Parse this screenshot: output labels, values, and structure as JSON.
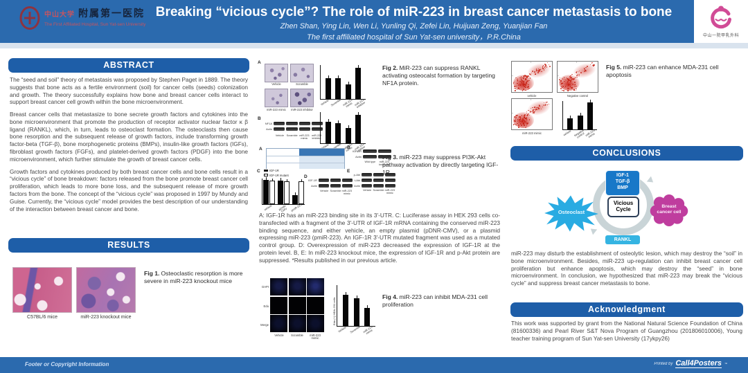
{
  "colors": {
    "header_blue": "#2b6aae",
    "section_blue": "#1e5ea8",
    "cyan": "#29abe2",
    "magenta": "#bf3d9e",
    "box_blue": "#1878c8",
    "rankl_blue": "#35b4e2"
  },
  "header": {
    "title": "Breaking “vicious cycle”? The role of miR-223 in breast cancer metastasis to bone",
    "authors": "Zhen Shan, Ying Lin, Wen Li, Yunling Qi, Zefei Lin, Huijuan Zeng, Yuanjian Fan",
    "affiliation": "The first affiliated hospital of Sun Yat-sen university，P.R.China",
    "left_logo": {
      "univ_cn": "中山大学",
      "hospital_cn": "附属第一医院",
      "hospital_en": "The First Affiliated Hospital, Sun Yat-sen University"
    },
    "right_logo": {
      "caption": "中山一院甲乳外科"
    }
  },
  "sections": {
    "abstract": "ABSTRACT",
    "results": "RESULTS",
    "conclusions": "CONCLUSIONS",
    "acknowledgment": "Acknowledgment"
  },
  "abstract_paragraphs": [
    "The “seed and soil” theory of metastasis was proposed by Stephen Paget in 1889. The theory suggests that bone acts as a fertile environment (soil) for cancer cells (seeds) colonization and growth. The theory successfully explains how bone and breast cancer cells interact to support breast cancer cell growth within the bone microenvironment.",
    "Breast cancer cells that metastasize to bone secrete growth factors and cytokines into the bone microenvironment that promote the production of receptor activator nuclear factor κ β ligand (RANKL), which, in turn, leads to osteoclast formation. The osteoclasts then cause bone resorption and the subsequent release of growth factors, include transforming growth factor-beta (TGF-β), bone morphogenetic proteins (BMPs), insulin-like growth factors (IGFs), fibroblast growth factors (FGFs), and platelet-derived growth factors (PDGF) into the bone microenvironment, which further stimulate the growth of breast cancer cells.",
    "Growth factors and cytokines produced by both breast cancer cells and bone cells result in a “vicious cycle” of bone breakdown: factors released from the bone promote breast cancer cell proliferation, which leads to more bone loss, and the subsequent release of more growth factors from the bone. The concept of the “vicious cycle” was proposed in 1997 by Mundy and Guise. Currently, the “vicious cycle” model provides the best description of our understanding of the interaction between breast cancer and bone."
  ],
  "figures": {
    "fig1": {
      "label": "Fig 1.",
      "caption": "Osteoclastic resorption is more severe in miR-223 knockout mice",
      "image_labels": [
        "C57BL/6 mice",
        "miR-223 knockout mice"
      ]
    },
    "fig2": {
      "label": "Fig 2.",
      "caption": "MiR-223 can suppress RANKL activating osteocalst formation by targeting NF1A protein.",
      "panel_letters": [
        "A",
        "B"
      ],
      "image_labels": [
        "Vehicle",
        "Scramble",
        "miR-223 mimic",
        "miR-223 inhibitor"
      ],
      "blot_rows": [
        "NF1A",
        "Actin"
      ],
      "lanes": [
        "Vehicle",
        "Scramble",
        "miR-223 mimic",
        "miR-223 inhibitor"
      ],
      "chart1": {
        "type": "bar",
        "values": [
          62,
          62,
          42,
          92
        ],
        "x": [
          "Vehicle",
          "Scramble",
          "miR-223 mimic",
          "miR-223 inhibitor"
        ]
      },
      "chart2": {
        "type": "bar",
        "values": [
          68,
          64,
          50,
          92
        ],
        "x": [
          "Vehicle",
          "Scramble",
          "miR-223 mimic",
          "miR-223 inhibitor"
        ]
      }
    },
    "fig3": {
      "label": "Fig 3.",
      "caption": "miR-223 may suppress PI3K-Akt pathway activation by directly targeting IGF-1R",
      "panel_letters": [
        "A",
        "B",
        "C",
        "D",
        "E"
      ],
      "legend": [
        "IGF-1R",
        "IGF-1R mutant"
      ],
      "chartC": {
        "type": "bar",
        "groups": [
          "vehicle",
          "pDNR-CMV",
          "pmiR-223"
        ],
        "values": [
          {
            "v": 95
          },
          {
            "v": 92,
            "light": 1
          },
          {
            "sp": 1
          },
          {
            "v": 93
          },
          {
            "v": 90,
            "light": 1
          },
          {
            "sp": 1
          },
          {
            "v": 35
          },
          {
            "v": 88,
            "light": 1
          }
        ]
      },
      "blotB": {
        "rows": [
          "IGF-1R",
          "Actin"
        ],
        "lanes": [
          "Wild type",
          "miR-223 knockout"
        ]
      },
      "blotD": {
        "rows": [
          "IGF-1R",
          "Actin"
        ],
        "lanes": [
          "Vehicle",
          "Scramble",
          "miR-223 mimic"
        ]
      },
      "blotE": {
        "rows": [
          "p-Akt",
          "t-Akt",
          "Actin"
        ],
        "lanes": [
          "Vehicle",
          "Scramble",
          "miR-223 mimic"
        ]
      },
      "description": "A: IGF-1R has an miR-223 binding site in its 3'-UTR. C: Luciferase assay in HEK 293 cells co-transfected with a fragment of the 3'-UTR of IGF-1R mRNA containing the conserved miR-223 binding sequence, and either vehicle, an empty plasmid (pDNR-CMV), or a plasmid expressing miR-223 (pmiR-223). An IGF-1R 3'-UTR mutated fragment was used as a mutated control group. D: Overexpression of miR-223 decreased the expression of IGF-1R at the protein level. B, E: In miR-223 knockout mice, the expression of IGF-1R and p-Akt protein are suppressed. *Results published in our previous article."
    },
    "fig4": {
      "label": "Fig 4.",
      "caption": "miR-223 can inhibit MDA-231 cell proliferation",
      "row_labels": [
        "DAPI",
        "Edu",
        "Merge"
      ],
      "col_labels": [
        "Vehicle",
        "Scramble",
        "miR-223 mimic"
      ],
      "ylabel": "Edu (+) MDA-231 cells",
      "chart": {
        "type": "bar",
        "values": [
          76,
          68,
          44
        ],
        "x": [
          "Vehicle",
          "Scramble",
          "miR-223 mimic"
        ]
      }
    },
    "fig5": {
      "label": "Fig 5.",
      "caption": "miR-223 can enhance MDA-231 cell apoptosis",
      "plot_labels": [
        "vehicle",
        "Negative control",
        "miR-223 mimic"
      ],
      "chart": {
        "type": "bar",
        "values": [
          38,
          50,
          95
        ],
        "x": [
          "vehicle",
          "Negative control",
          "miR-223 mimic"
        ]
      }
    }
  },
  "diagram": {
    "top_box": [
      "IGF-1",
      "TGF-β",
      "BMP"
    ],
    "left_burst": "Osteoclast",
    "center": [
      "Vicious",
      "Cycle"
    ],
    "right_cell": [
      "Breast",
      "cancer cell"
    ],
    "bottom_box": "RANKL"
  },
  "conclusions_text": "miR-223 may disturb the establishment of osteolytic lesion, which may destroy the “soil” in bone microenvironment. Besides, miR-223 up-regulation can inhibit breast cancer cell proliferation but enhance apoptosis, which may destroy the “seed” in bone microenvironment. In conclusion, we hypothesized that miR-223 may break the “vicious cycle” and suppress breast cancer metastasis to bone.",
  "acknowledgment_text": "This work was supported by grant from the National Natural Science Foundation of China (81600336) and Pearl River S&T Nova Program of Guangzhou (201806010006), Young teacher training program of Sun Yat-sen University (17ykpy26)",
  "footer": {
    "left": "Footer or Copyright Information",
    "printed_by": "Printed by",
    "brand": "Call4Posters",
    "tm": "™"
  }
}
